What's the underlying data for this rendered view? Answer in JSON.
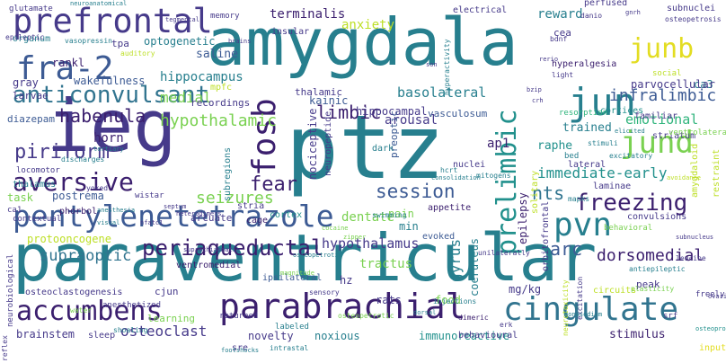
{
  "canvas": {
    "background": "#ffffff"
  },
  "palette": {
    "navy": "#3b1f6e",
    "indigo": "#463a8a",
    "blue": "#3d5b94",
    "steel": "#31748f",
    "teal": "#277f8e",
    "sea": "#21908c",
    "green": "#2fb47c",
    "lime": "#7ad151",
    "yellowgreen": "#bddf26",
    "yellow": "#e3dd22"
  },
  "words": [
    {
      "text": "ptz",
      "color": "teal"
    },
    {
      "text": "amygdala",
      "color": "teal"
    },
    {
      "text": "paraventricular",
      "color": "teal"
    },
    {
      "text": "ieg",
      "color": "indigo"
    },
    {
      "text": "pentylenetetrazole",
      "color": "blue"
    },
    {
      "text": "parabrachial",
      "color": "navy"
    },
    {
      "text": "cingulate",
      "color": "steel"
    },
    {
      "text": "fra-2",
      "color": "blue"
    },
    {
      "text": "prefrontal",
      "color": "indigo"
    },
    {
      "text": "anticonvulsant",
      "color": "steel"
    },
    {
      "text": "fosb",
      "color": "navy"
    },
    {
      "text": "junb",
      "color": "yellow"
    },
    {
      "text": "jun",
      "color": "teal"
    },
    {
      "text": "jund",
      "color": "lime"
    },
    {
      "text": "pvn",
      "color": "teal"
    },
    {
      "text": "prelimbic",
      "color": "sea"
    },
    {
      "text": "accumbens",
      "color": "navy"
    },
    {
      "text": "aversive",
      "color": "navy"
    },
    {
      "text": "freezing",
      "color": "navy"
    },
    {
      "text": "periaqueductal",
      "color": "navy"
    },
    {
      "text": "fear",
      "color": "navy"
    },
    {
      "text": "hypothalamic",
      "color": "lime"
    },
    {
      "text": "session",
      "color": "blue"
    },
    {
      "text": "nts",
      "color": "steel"
    },
    {
      "text": "seizures",
      "color": "lime"
    },
    {
      "text": "piriform",
      "color": "indigo"
    },
    {
      "text": "habenula",
      "color": "navy"
    },
    {
      "text": "limbic",
      "color": "navy"
    },
    {
      "text": "basolateral",
      "color": "teal"
    },
    {
      "text": "infralimbic",
      "color": "blue"
    },
    {
      "text": "dorsomedial",
      "color": "navy"
    },
    {
      "text": "immediate-early",
      "color": "sea"
    },
    {
      "text": "emotional",
      "color": "green"
    },
    {
      "text": "hypothalamus",
      "color": "indigo"
    },
    {
      "text": "arc",
      "color": "blue"
    },
    {
      "text": "supraoptic",
      "color": "steel"
    },
    {
      "text": "medial",
      "color": "lime"
    },
    {
      "text": "hippocampus",
      "color": "teal"
    },
    {
      "text": "terminalis",
      "color": "navy"
    },
    {
      "text": "optogenetic",
      "color": "teal"
    },
    {
      "text": "saline",
      "color": "blue"
    },
    {
      "text": "ca3",
      "color": "teal"
    },
    {
      "text": "ap1",
      "color": "navy"
    },
    {
      "text": "raphe",
      "color": "sea"
    },
    {
      "text": "arousal",
      "color": "indigo"
    },
    {
      "text": "trained",
      "color": "teal"
    },
    {
      "text": "horn",
      "color": "navy"
    },
    {
      "text": "dentate",
      "color": "lime"
    },
    {
      "text": "tractus",
      "color": "lime"
    },
    {
      "text": "gyrus",
      "color": "teal"
    },
    {
      "text": "coeruleus",
      "color": "teal"
    },
    {
      "text": "immunoreactive",
      "color": "sea"
    },
    {
      "text": "noxious",
      "color": "teal"
    },
    {
      "text": "novelty",
      "color": "indigo"
    },
    {
      "text": "stimulus",
      "color": "navy"
    },
    {
      "text": "osteoclast",
      "color": "indigo"
    },
    {
      "text": "brainstem",
      "color": "indigo"
    },
    {
      "text": "postrema",
      "color": "blue"
    },
    {
      "text": "task",
      "color": "lime"
    },
    {
      "text": "nociceptive",
      "color": "indigo"
    },
    {
      "text": "neuropeptide",
      "color": "indigo"
    },
    {
      "text": "hippocampal",
      "color": "indigo"
    },
    {
      "text": "parvocellular",
      "color": "indigo"
    },
    {
      "text": "epilepsy",
      "color": "navy"
    },
    {
      "text": "pain",
      "color": "lime"
    },
    {
      "text": "min",
      "color": "teal"
    },
    {
      "text": "evoked",
      "color": "blue"
    },
    {
      "text": "rats",
      "color": "indigo"
    },
    {
      "text": "mg/kg",
      "color": "indigo"
    },
    {
      "text": "anxiety",
      "color": "yellowgreen"
    },
    {
      "text": "reward",
      "color": "teal"
    },
    {
      "text": "kainic",
      "color": "blue"
    },
    {
      "text": "recordings",
      "color": "indigo"
    },
    {
      "text": "thalamic",
      "color": "indigo"
    },
    {
      "text": "wakefulness",
      "color": "blue"
    },
    {
      "text": "larvae",
      "color": "indigo"
    },
    {
      "text": "gray",
      "color": "indigo"
    },
    {
      "text": "diazepam",
      "color": "blue"
    },
    {
      "text": "hz",
      "color": "indigo"
    },
    {
      "text": "food",
      "color": "lime"
    },
    {
      "text": "cjun",
      "color": "indigo"
    },
    {
      "text": "ventromedial",
      "color": "navy"
    },
    {
      "text": "ipsilateral",
      "color": "blue"
    },
    {
      "text": "preoptic",
      "color": "blue"
    },
    {
      "text": "vasculosum",
      "color": "blue"
    },
    {
      "text": "cortices",
      "color": "sea"
    },
    {
      "text": "striatum",
      "color": "indigo"
    },
    {
      "text": "familiar",
      "color": "indigo"
    },
    {
      "text": "laminae",
      "color": "indigo"
    },
    {
      "text": "convulsions",
      "color": "indigo"
    },
    {
      "text": "peak",
      "color": "indigo"
    },
    {
      "text": "wistar",
      "color": "indigo"
    },
    {
      "text": "phorbol",
      "color": "navy"
    },
    {
      "text": "locomotor",
      "color": "indigo"
    },
    {
      "text": "thalamus",
      "color": "teal"
    },
    {
      "text": "arcuate",
      "color": "indigo"
    },
    {
      "text": "stria",
      "color": "indigo"
    },
    {
      "text": "cage",
      "color": "navy"
    },
    {
      "text": "cortex",
      "color": "sea"
    },
    {
      "text": "subregions",
      "color": "teal"
    },
    {
      "text": "appetite",
      "color": "navy"
    },
    {
      "text": "swimming",
      "color": "teal"
    },
    {
      "text": "solitary",
      "color": "yellowgreen"
    },
    {
      "text": "behavioral",
      "color": "lime"
    },
    {
      "text": "restraint",
      "color": "yellowgreen"
    },
    {
      "text": "amygdaloid",
      "color": "yellowgreen"
    },
    {
      "text": "ventrolateral",
      "color": "lime"
    },
    {
      "text": "social",
      "color": "yellowgreen"
    },
    {
      "text": "subnuclei",
      "color": "indigo"
    },
    {
      "text": "cea",
      "color": "indigo"
    },
    {
      "text": "perfused",
      "color": "indigo"
    },
    {
      "text": "electrical",
      "color": "indigo"
    },
    {
      "text": "insular",
      "color": "indigo"
    },
    {
      "text": "memory",
      "color": "indigo"
    },
    {
      "text": "glutamate",
      "color": "indigo"
    },
    {
      "text": "organum",
      "color": "teal"
    },
    {
      "text": "vasopressin",
      "color": "teal"
    },
    {
      "text": "tpa",
      "color": "indigo"
    },
    {
      "text": "rankl",
      "color": "navy"
    },
    {
      "text": "mpfc",
      "color": "yellowgreen"
    },
    {
      "text": "hyperalgesia",
      "color": "navy"
    },
    {
      "text": "resorption",
      "color": "green"
    },
    {
      "text": "lateral",
      "color": "indigo"
    },
    {
      "text": "nuclei",
      "color": "indigo"
    },
    {
      "text": "dark",
      "color": "teal"
    },
    {
      "text": "hcrt",
      "color": "teal"
    },
    {
      "text": "mitogens",
      "color": "teal"
    },
    {
      "text": "mapks",
      "color": "teal"
    },
    {
      "text": "stimuli",
      "color": "teal"
    },
    {
      "text": "excitatory",
      "color": "teal"
    },
    {
      "text": "elicited",
      "color": "teal"
    },
    {
      "text": "protooncogene",
      "color": "yellowgreen"
    },
    {
      "text": "contextual",
      "color": "indigo"
    },
    {
      "text": "ca1",
      "color": "indigo"
    },
    {
      "text": "neurobiological",
      "color": "indigo"
    },
    {
      "text": "osteoclastogenesis",
      "color": "indigo"
    },
    {
      "text": "learning",
      "color": "lime"
    },
    {
      "text": "shoaling",
      "color": "teal"
    },
    {
      "text": "anesthetized",
      "color": "indigo"
    },
    {
      "text": "returned",
      "color": "indigo"
    },
    {
      "text": "sleep",
      "color": "indigo"
    },
    {
      "text": "sre",
      "color": "indigo"
    },
    {
      "text": "labeled",
      "color": "teal"
    },
    {
      "text": "behavioural",
      "color": "indigo"
    },
    {
      "text": "injections",
      "color": "teal"
    },
    {
      "text": "dimeric",
      "color": "navy"
    },
    {
      "text": "erk",
      "color": "indigo"
    },
    {
      "text": "orbitofrontal",
      "color": "indigo"
    },
    {
      "text": "circuits",
      "color": "yellowgreen"
    },
    {
      "text": "srf",
      "color": "indigo"
    },
    {
      "text": "freely",
      "color": "indigo"
    },
    {
      "text": "input",
      "color": "yellow"
    },
    {
      "text": "osteoprotegerin",
      "color": "sea"
    },
    {
      "text": "neurotoxicity",
      "color": "yellowgreen"
    },
    {
      "text": "excitation",
      "color": "indigo"
    },
    {
      "text": "antiepileptic",
      "color": "teal"
    },
    {
      "text": "plasticity",
      "color": "lime"
    },
    {
      "text": "leucine",
      "color": "indigo"
    },
    {
      "text": "subnucleus",
      "color": "indigo"
    },
    {
      "text": "septum",
      "color": "indigo"
    },
    {
      "text": "heterodimers",
      "color": "indigo"
    },
    {
      "text": "anesthesia",
      "color": "teal"
    },
    {
      "text": "cocaine",
      "color": "lime"
    },
    {
      "text": "osteopetrotic",
      "color": "teal"
    },
    {
      "text": "footshocks",
      "color": "teal"
    },
    {
      "text": "intrastal",
      "color": "teal"
    },
    {
      "text": "visual",
      "color": "teal"
    },
    {
      "text": "neuroanatomical",
      "color": "teal"
    },
    {
      "text": "epileptic",
      "color": "indigo"
    },
    {
      "text": "auditory",
      "color": "yellowgreen"
    },
    {
      "text": "nfatc1",
      "color": "indigo"
    },
    {
      "text": "suprachiasmatic",
      "color": "indigo"
    },
    {
      "text": "zipper",
      "color": "lime"
    },
    {
      "text": "tegmental",
      "color": "indigo"
    },
    {
      "text": "brains",
      "color": "indigo"
    },
    {
      "text": "hyperactivity",
      "color": "teal"
    },
    {
      "text": "son",
      "color": "indigo"
    },
    {
      "text": "danio",
      "color": "indigo"
    },
    {
      "text": "bdnf",
      "color": "indigo"
    },
    {
      "text": "light",
      "color": "indigo"
    },
    {
      "text": "gnrh",
      "color": "indigo"
    },
    {
      "text": "osteopetrosis",
      "color": "indigo"
    },
    {
      "text": "rerio",
      "color": "indigo"
    },
    {
      "text": "bzip",
      "color": "indigo"
    },
    {
      "text": "crh",
      "color": "indigo"
    },
    {
      "text": "consolidation",
      "color": "teal"
    },
    {
      "text": "tertiary",
      "color": "teal"
    },
    {
      "text": "yoked",
      "color": "indigo"
    },
    {
      "text": "discharges",
      "color": "teal"
    },
    {
      "text": "magnitude",
      "color": "lime"
    },
    {
      "text": "sensory",
      "color": "indigo"
    },
    {
      "text": "unilaterally",
      "color": "indigo"
    },
    {
      "text": "osteopetrotic",
      "color": "lime"
    },
    {
      "text": "reflex",
      "color": "indigo"
    },
    {
      "text": "water",
      "color": "lime"
    },
    {
      "text": "ovariectomized",
      "color": "indigo"
    },
    {
      "text": "avoidance",
      "color": "yellowgreen"
    },
    {
      "text": "monosodium",
      "color": "teal"
    },
    {
      "text": "dorsal",
      "color": "teal"
    },
    {
      "text": "bed",
      "color": "teal"
    }
  ]
}
